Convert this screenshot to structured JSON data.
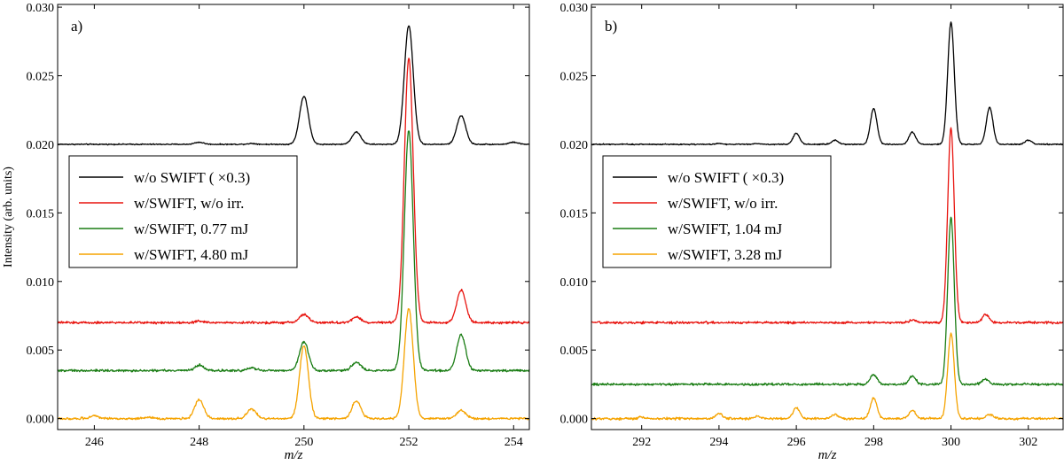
{
  "chart_data": [
    {
      "type": "line",
      "panel_label": "a)",
      "xlabel": "m/z",
      "ylabel": "Intensity (arb. units)",
      "xlim": [
        245.3,
        254.3
      ],
      "ylim": [
        -0.0008,
        0.0302
      ],
      "xticks": [
        246,
        248,
        250,
        252,
        254
      ],
      "xtick_labels": [
        "246",
        "248",
        "250",
        "252",
        "254"
      ],
      "yticks": [
        0.0,
        0.005,
        0.01,
        0.015,
        0.02,
        0.025,
        0.03
      ],
      "ytick_labels": [
        "0.000",
        "0.005",
        "0.010",
        "0.015",
        "0.020",
        "0.025",
        "0.030"
      ],
      "legend_position": "center-left",
      "series": [
        {
          "name": "w/o SWIFT ( ×0.3)",
          "color": "#000000",
          "baseline": 0.02,
          "noise": 2e-05,
          "peaks": [
            [
              248,
              0.00015
            ],
            [
              249,
              6e-05
            ],
            [
              250,
              0.0035
            ],
            [
              251,
              0.0009
            ],
            [
              252,
              0.00865
            ],
            [
              253,
              0.0021
            ],
            [
              254,
              0.00015
            ]
          ]
        },
        {
          "name": "w/SWIFT, w/o irr.",
          "color": "#e8140f",
          "baseline": 0.007,
          "noise": 4e-05,
          "peaks": [
            [
              248,
              0.0001
            ],
            [
              250,
              0.0006
            ],
            [
              251,
              0.0004
            ],
            [
              252,
              0.0193
            ],
            [
              253,
              0.0024
            ]
          ]
        },
        {
          "name": "w/SWIFT, 0.77 mJ",
          "color": "#1a7d14",
          "baseline": 0.0035,
          "noise": 4e-05,
          "peaks": [
            [
              248,
              0.0004
            ],
            [
              249,
              0.0002
            ],
            [
              250,
              0.0021
            ],
            [
              251,
              0.0006
            ],
            [
              252,
              0.0175
            ],
            [
              253,
              0.0026
            ]
          ]
        },
        {
          "name": "w/SWIFT, 4.80 mJ",
          "color": "#f5a300",
          "baseline": 0.0,
          "noise": 4e-05,
          "peaks": [
            [
              246,
              0.0002
            ],
            [
              247,
              0.0001
            ],
            [
              248,
              0.0014
            ],
            [
              249,
              0.0007
            ],
            [
              250,
              0.0053
            ],
            [
              251,
              0.0013
            ],
            [
              252,
              0.008
            ],
            [
              253,
              0.0006
            ]
          ]
        }
      ]
    },
    {
      "type": "line",
      "panel_label": "b)",
      "xlabel": "m/z",
      "ylabel": "",
      "xlim": [
        290.7,
        302.9
      ],
      "ylim": [
        -0.0008,
        0.0302
      ],
      "xticks": [
        292,
        294,
        296,
        298,
        300,
        302
      ],
      "xtick_labels": [
        "292",
        "294",
        "296",
        "298",
        "300",
        "302"
      ],
      "yticks": [
        0.0,
        0.005,
        0.01,
        0.015,
        0.02,
        0.025,
        0.03
      ],
      "ytick_labels": [
        "0.000",
        "0.005",
        "0.010",
        "0.015",
        "0.020",
        "0.025",
        "0.030"
      ],
      "legend_position": "center-left",
      "series": [
        {
          "name": "w/o SWIFT ( ×0.3)",
          "color": "#000000",
          "baseline": 0.02,
          "noise": 2e-05,
          "peaks": [
            [
              294,
              7e-05
            ],
            [
              295,
              5e-05
            ],
            [
              296,
              0.0008
            ],
            [
              297,
              0.0003
            ],
            [
              298,
              0.0026
            ],
            [
              299,
              0.0009
            ],
            [
              300,
              0.0089
            ],
            [
              301,
              0.0027
            ],
            [
              302,
              0.0003
            ]
          ]
        },
        {
          "name": "w/SWIFT, w/o irr.",
          "color": "#e8140f",
          "baseline": 0.007,
          "noise": 4e-05,
          "peaks": [
            [
              299,
              0.0002
            ],
            [
              300,
              0.0142
            ],
            [
              300.9,
              0.0006
            ]
          ]
        },
        {
          "name": "w/SWIFT, 1.04 mJ",
          "color": "#1a7d14",
          "baseline": 0.0025,
          "noise": 4e-05,
          "peaks": [
            [
              298,
              0.0007
            ],
            [
              299,
              0.0006
            ],
            [
              300,
              0.0122
            ],
            [
              300.9,
              0.0004
            ]
          ]
        },
        {
          "name": "w/SWIFT, 3.28 mJ",
          "color": "#f5a300",
          "baseline": 0.0,
          "noise": 4e-05,
          "peaks": [
            [
              292,
              0.0001
            ],
            [
              294,
              0.0004
            ],
            [
              295,
              0.00015
            ],
            [
              296,
              0.0008
            ],
            [
              297,
              0.0003
            ],
            [
              298,
              0.0015
            ],
            [
              299,
              0.0006
            ],
            [
              300,
              0.0062
            ],
            [
              301,
              0.0003
            ]
          ]
        }
      ]
    }
  ]
}
